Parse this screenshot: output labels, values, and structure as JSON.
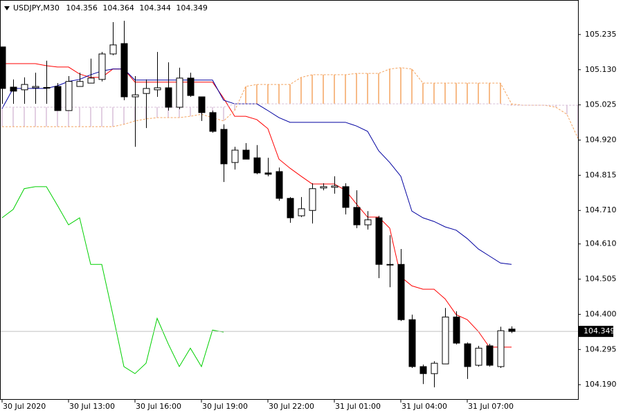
{
  "chart_data": {
    "type": "candlestick",
    "title": "USDJPY,M30",
    "categories": [
      "30 Jul 2020",
      null,
      null,
      null,
      null,
      null,
      "30 Jul 13:00",
      null,
      null,
      null,
      null,
      null,
      "30 Jul 16:00",
      null,
      null,
      null,
      null,
      null,
      "30 Jul 19:00",
      null,
      null,
      null,
      null,
      null,
      "30 Jul 22:00",
      null,
      null,
      null,
      null,
      null,
      "31 Jul 01:00",
      null,
      null,
      null,
      null,
      null,
      "31 Jul 04:00",
      null,
      null,
      null,
      null,
      null,
      "31 Jul 07:00",
      null,
      null,
      null,
      null,
      null,
      null,
      null,
      null,
      null,
      null
    ],
    "open": [
      105.198,
      105.078,
      105.07,
      105.076,
      105.076,
      105.08,
      105.008,
      105.08,
      105.09,
      105.101,
      105.177,
      105.208,
      105.049,
      105.059,
      105.07,
      105.076,
      105.018,
      105.105,
      105.049,
      105.002,
      104.952,
      104.853,
      104.89,
      104.867,
      104.822,
      104.826,
      104.746,
      104.694,
      104.71,
      104.777,
      104.779,
      104.781,
      104.719,
      104.667,
      104.688,
      104.549,
      104.549,
      104.384,
      104.244,
      104.223,
      104.252,
      104.392,
      104.312,
      104.248,
      104.306,
      104.244,
      104.356,
      null,
      null,
      null,
      null,
      null,
      null
    ],
    "high": [
      105.198,
      105.101,
      105.107,
      105.121,
      105.157,
      105.09,
      105.111,
      105.121,
      105.163,
      105.183,
      105.272,
      105.276,
      105.111,
      105.101,
      105.183,
      105.152,
      105.136,
      105.121,
      105.049,
      105.008,
      104.967,
      104.9,
      104.911,
      104.905,
      104.867,
      104.838,
      104.75,
      104.75,
      104.791,
      104.791,
      104.812,
      104.791,
      104.77,
      104.708,
      104.694,
      104.636,
      104.595,
      104.399,
      104.25,
      104.26,
      104.419,
      104.409,
      104.316,
      104.306,
      104.312,
      104.363,
      104.364,
      null,
      null,
      null,
      null,
      null,
      null
    ],
    "low": [
      105.028,
      105.028,
      105.028,
      105.028,
      105.028,
      105.008,
      105.008,
      105.08,
      105.09,
      105.095,
      105.173,
      105.039,
      104.9,
      104.956,
      105.049,
      105.008,
      105.012,
      105.049,
      104.977,
      104.942,
      104.795,
      104.832,
      104.863,
      104.818,
      104.812,
      104.739,
      104.673,
      104.69,
      104.671,
      104.77,
      104.76,
      104.698,
      104.657,
      104.653,
      104.508,
      104.481,
      104.38,
      104.24,
      104.192,
      104.182,
      104.252,
      104.31,
      104.207,
      104.244,
      104.244,
      104.24,
      104.344,
      null,
      null,
      null,
      null,
      null,
      null
    ],
    "close": [
      105.074,
      105.066,
      105.086,
      105.08,
      105.077,
      105.008,
      105.095,
      105.095,
      105.105,
      105.177,
      105.204,
      105.049,
      105.055,
      105.074,
      105.076,
      105.018,
      105.105,
      105.053,
      105.002,
      104.946,
      104.849,
      104.89,
      104.863,
      104.822,
      104.818,
      104.746,
      104.688,
      104.715,
      104.775,
      104.781,
      104.783,
      104.719,
      104.667,
      104.682,
      104.549,
      104.549,
      104.384,
      104.244,
      104.223,
      104.254,
      104.392,
      104.314,
      104.244,
      104.299,
      104.248,
      104.351,
      104.349,
      null,
      null,
      null,
      null,
      null,
      null
    ],
    "up_color": "#ffffff",
    "down_color": "#000000",
    "series": [
      {
        "color": "#ff0000",
        "values": [
          105.148,
          105.148,
          105.148,
          105.148,
          105.142,
          105.138,
          105.138,
          105.117,
          105.107,
          105.107,
          105.132,
          105.132,
          105.093,
          105.093,
          105.093,
          105.093,
          105.093,
          105.093,
          105.093,
          105.093,
          105.045,
          104.991,
          104.991,
          104.981,
          104.954,
          104.863,
          104.836,
          104.812,
          104.789,
          104.789,
          104.789,
          104.77,
          104.729,
          104.69,
          104.69,
          104.657,
          104.512,
          104.485,
          104.475,
          104.475,
          104.446,
          104.399,
          104.384,
          104.349,
          104.302,
          104.302,
          104.302,
          null,
          null,
          null,
          null,
          null,
          null
        ]
      },
      {
        "color": "#0000a0",
        "values": [
          105.014,
          105.074,
          105.074,
          105.074,
          105.074,
          105.082,
          105.095,
          105.101,
          105.115,
          105.126,
          105.132,
          105.132,
          105.099,
          105.099,
          105.099,
          105.099,
          105.099,
          105.099,
          105.099,
          105.099,
          105.039,
          105.028,
          105.028,
          105.028,
          105.008,
          104.987,
          104.973,
          104.973,
          104.973,
          104.973,
          104.973,
          104.973,
          104.962,
          104.946,
          104.888,
          104.853,
          104.812,
          104.708,
          104.688,
          104.677,
          104.661,
          104.651,
          104.626,
          104.595,
          104.574,
          104.553,
          104.549,
          null,
          null,
          null,
          null,
          null,
          null
        ]
      },
      {
        "color": "#00d000",
        "values": [
          104.688,
          104.713,
          104.775,
          104.781,
          104.781,
          104.725,
          104.667,
          104.688,
          104.549,
          104.549,
          104.399,
          104.244,
          104.223,
          104.254,
          104.388,
          104.312,
          104.244,
          104.299,
          104.244,
          104.353,
          104.347,
          null,
          null,
          null,
          null,
          null,
          null,
          null,
          null,
          null,
          null,
          null,
          null,
          null,
          null,
          null,
          null,
          null,
          null,
          null,
          null,
          null,
          null,
          null,
          null,
          null,
          null,
          null,
          null,
          null,
          null,
          null,
          null
        ]
      },
      {
        "color": "#f4a460",
        "dashed": true,
        "values": [
          104.96,
          104.96,
          104.96,
          104.96,
          104.96,
          104.96,
          104.96,
          104.96,
          104.96,
          104.96,
          104.96,
          104.967,
          104.977,
          104.983,
          104.987,
          104.987,
          104.987,
          104.991,
          104.997,
          104.987,
          104.977,
          105.008,
          105.08,
          105.086,
          105.086,
          105.086,
          105.086,
          105.107,
          105.115,
          105.115,
          105.115,
          105.115,
          105.119,
          105.119,
          105.119,
          105.132,
          105.136,
          105.132,
          105.09,
          105.09,
          105.09,
          105.09,
          105.09,
          105.09,
          105.09,
          105.09,
          105.028,
          105.024,
          105.024,
          105.024,
          105.018,
          104.997,
          104.925
        ]
      },
      {
        "color": "#d8bfd8",
        "dashed": true,
        "values": [
          105.018,
          105.018,
          105.018,
          105.018,
          105.018,
          105.018,
          105.018,
          105.018,
          105.018,
          105.018,
          105.018,
          105.018,
          105.018,
          105.018,
          105.018,
          105.018,
          105.018,
          105.018,
          105.018,
          105.018,
          105.018,
          105.028,
          105.028,
          105.028,
          105.028,
          105.028,
          105.028,
          105.028,
          105.028,
          105.028,
          105.028,
          105.028,
          105.028,
          105.028,
          105.028,
          105.028,
          105.028,
          105.028,
          105.028,
          105.028,
          105.028,
          105.028,
          105.028,
          105.028,
          105.028,
          105.028,
          105.024,
          105.024,
          105.024,
          105.024,
          105.024,
          105.024,
          105.024
        ]
      }
    ],
    "cloud_colors": [
      "#f4a460",
      "#d8bfd8"
    ],
    "ylim": [
      104.147,
      105.338
    ],
    "yticks": [
      105.235,
      {
        "value": 105.13,
        "label": "105.130"
      },
      105.025,
      {
        "value": 104.92,
        "label": "104.920"
      },
      104.815,
      {
        "value": 104.71,
        "label": "104.710"
      },
      {
        "value": 104.61,
        "label": "104.610"
      },
      104.505,
      {
        "value": 104.4,
        "label": "104.400"
      },
      104.295,
      {
        "value": 104.19,
        "label": "104.190"
      }
    ],
    "current_price_color": "#c0c0c0",
    "grid": false
  }
}
